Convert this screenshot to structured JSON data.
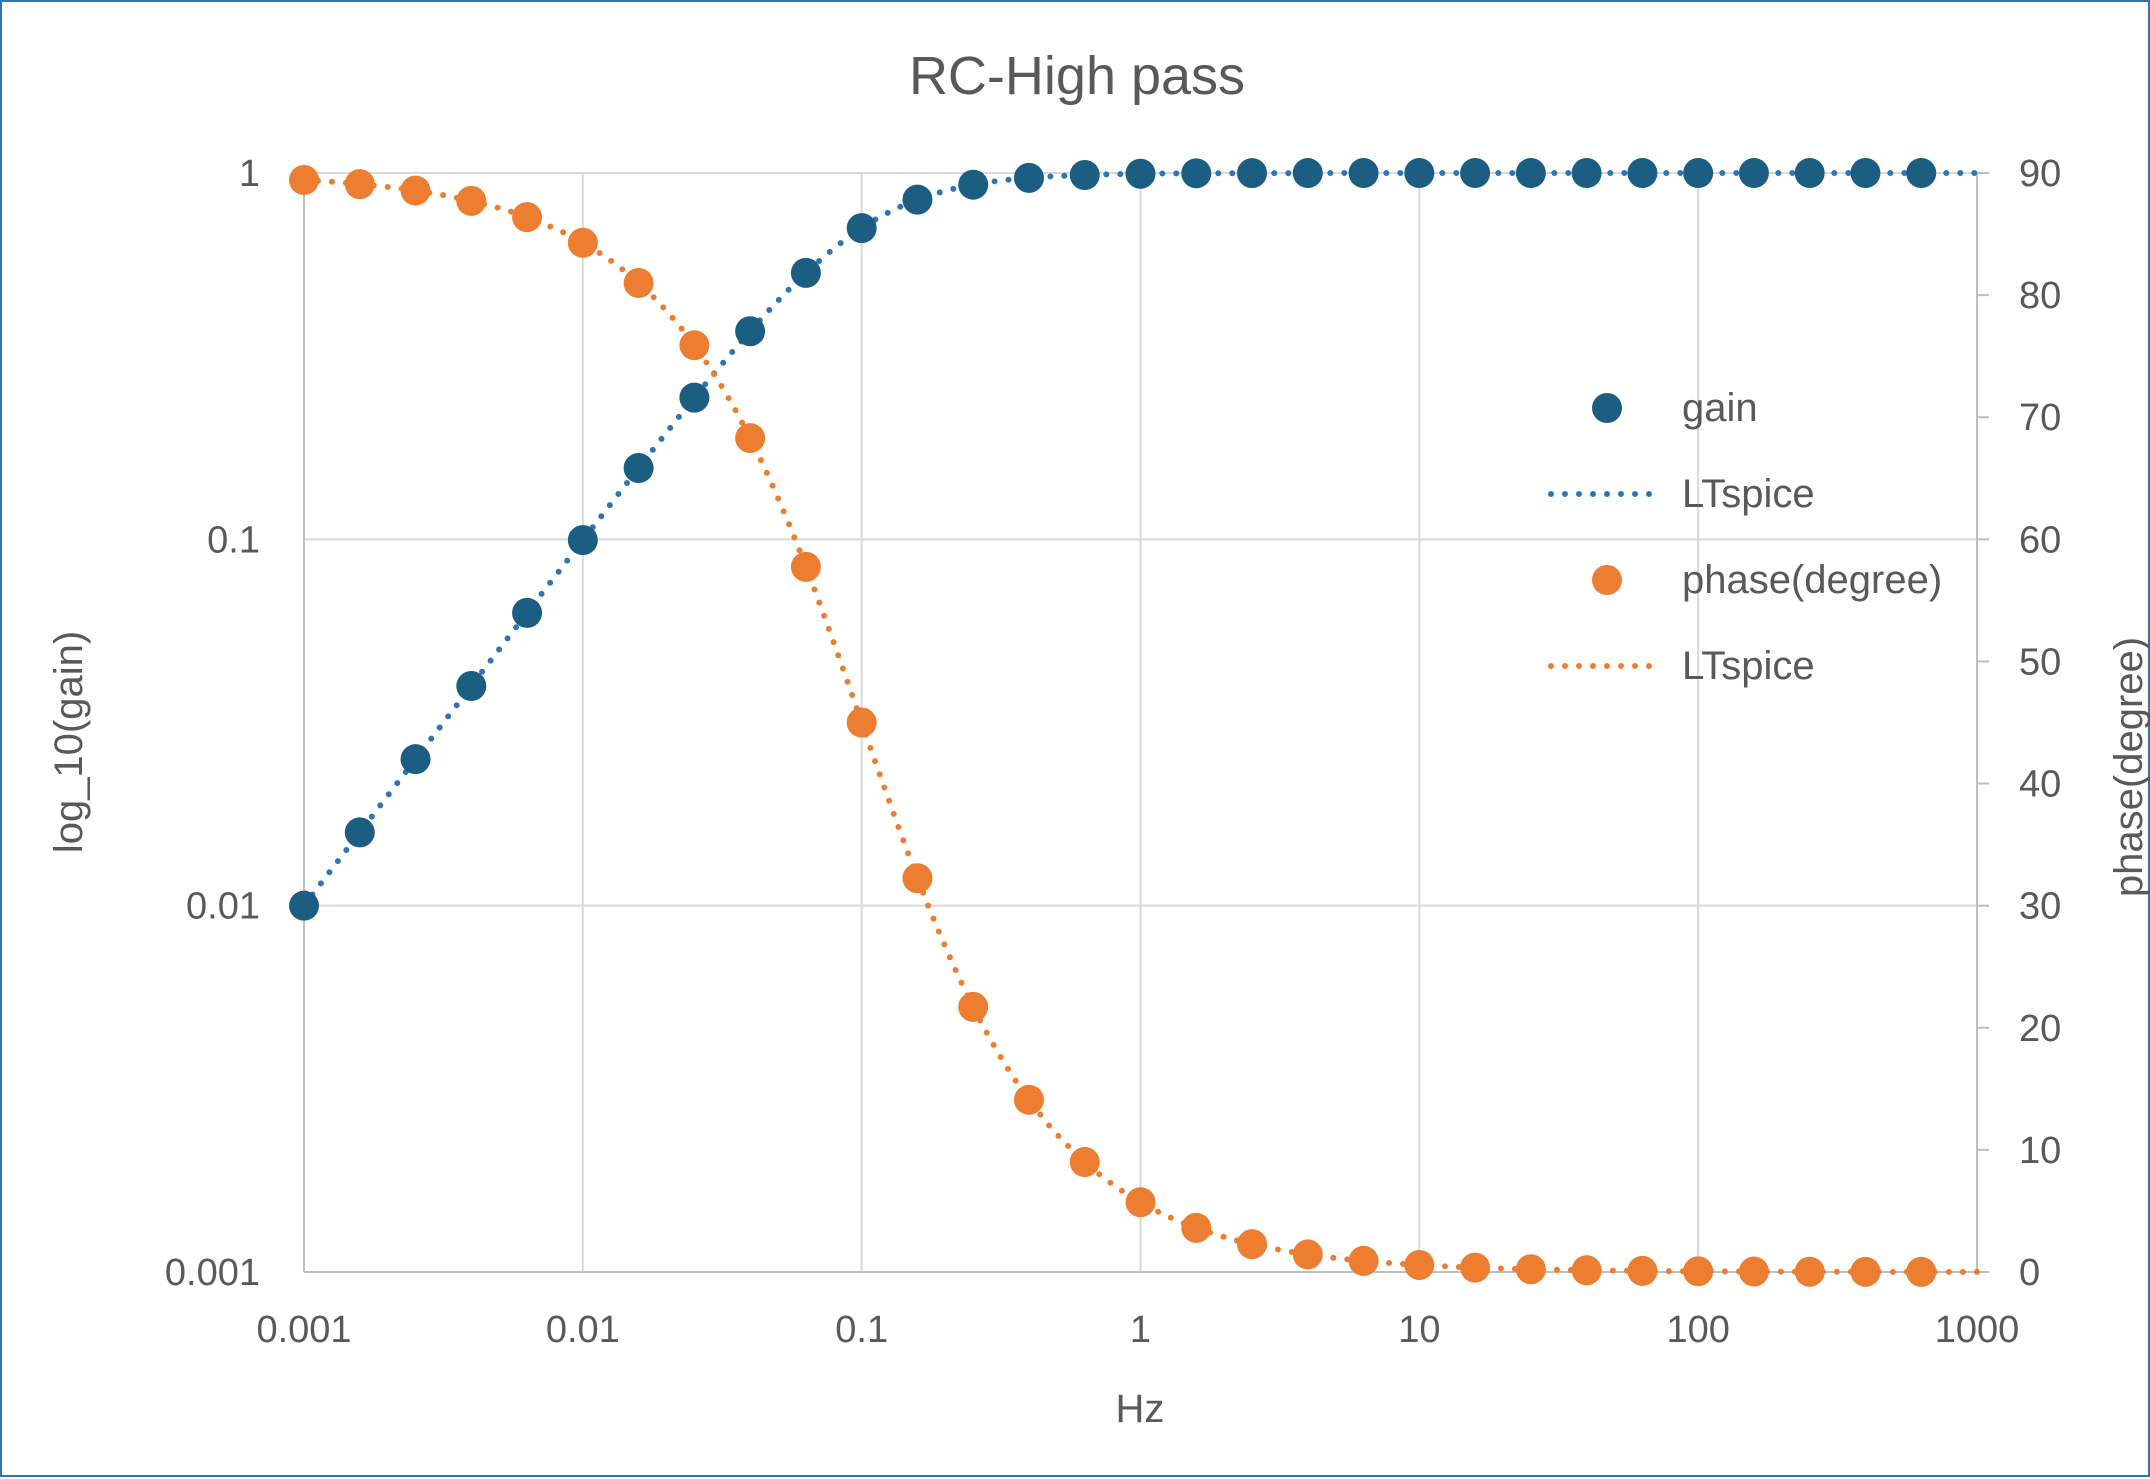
{
  "chart_data": {
    "type": "scatter",
    "title": "RC-High pass",
    "xlabel": "Hz",
    "ylabel_left": "log_10(gain)",
    "ylabel_right": "phase(degree)",
    "x_scale": "log",
    "y_left_scale": "log",
    "xlim": [
      0.001,
      1000
    ],
    "ylim_left": [
      0.001,
      1
    ],
    "ylim_right": [
      0,
      90
    ],
    "x_ticks": [
      "0.001",
      "0.01",
      "0.1",
      "1",
      "10",
      "100",
      "1000"
    ],
    "y_left_ticks": [
      "0.001",
      "0.01",
      "0.1",
      "1"
    ],
    "y_right_ticks": [
      "0",
      "10",
      "20",
      "30",
      "40",
      "50",
      "60",
      "70",
      "80",
      "90"
    ],
    "grid": true,
    "legend_position": "right",
    "cutoff_frequency_hz": 0.1,
    "x": [
      0.001,
      0.001585,
      0.002512,
      0.003981,
      0.00631,
      0.01,
      0.01585,
      0.02512,
      0.03981,
      0.0631,
      0.1,
      0.1585,
      0.2512,
      0.3981,
      0.631,
      1,
      1.585,
      2.512,
      3.981,
      6.31,
      10,
      15.85,
      25.12,
      39.81,
      63.1,
      100,
      158.5,
      251.2,
      398.1,
      631
    ],
    "series": [
      {
        "name": "gain",
        "kind": "markers",
        "axis": "left",
        "color": "#1b5e82",
        "model": "gain"
      },
      {
        "name": "LTspice",
        "kind": "dotted-line",
        "axis": "left",
        "color": "#2e75b6",
        "model": "gain"
      },
      {
        "name": "phase(degree)",
        "kind": "markers",
        "axis": "right",
        "color": "#ed7d31",
        "model": "phase"
      },
      {
        "name": "LTspice",
        "kind": "dotted-line",
        "axis": "right",
        "color": "#ed7d31",
        "model": "phase"
      }
    ]
  }
}
